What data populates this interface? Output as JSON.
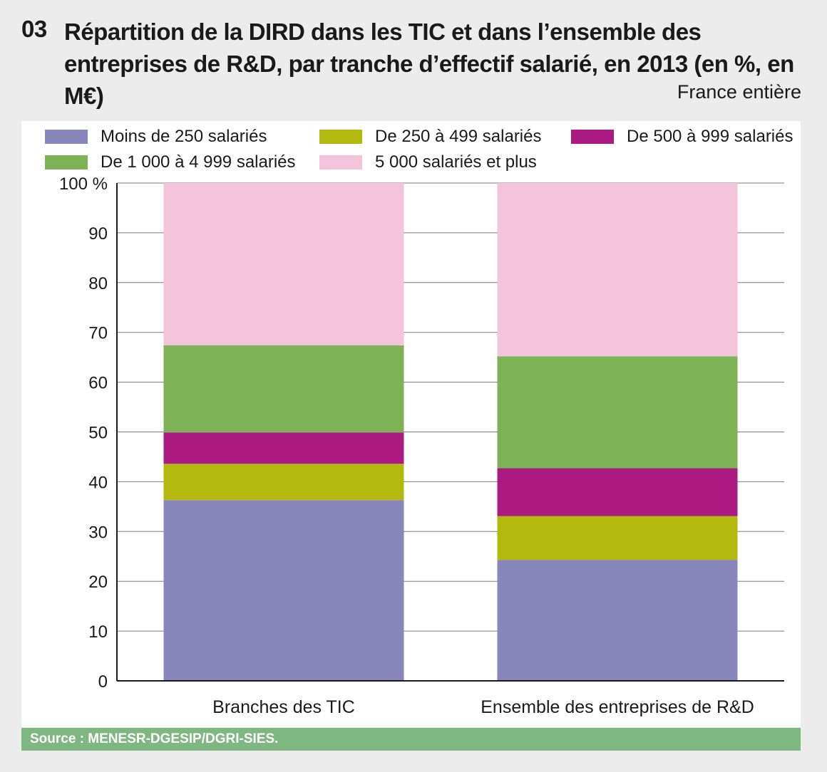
{
  "header": {
    "number": "03",
    "title": "Répartition de la DIRD dans les TIC et dans l’ensemble des entreprises de R&D, par tranche d’effectif salarié, en 2013 (en %, en M€)",
    "scope": "France entière"
  },
  "legend": [
    {
      "label": "Moins de 250 salariés",
      "color": "#8886ba"
    },
    {
      "label": "De 250 à 499 salariés",
      "color": "#b2b80e"
    },
    {
      "label": "De 500 à 999 salariés",
      "color": "#ab1a80"
    },
    {
      "label": "De 1 000 à 4 999 salariés",
      "color": "#7db257"
    },
    {
      "label": "5 000 salariés et plus",
      "color": "#f3c3da"
    }
  ],
  "chart_data": {
    "type": "bar",
    "stacked": true,
    "categories": [
      "Branches des TIC",
      "Ensemble des entreprises de R&D"
    ],
    "series": [
      {
        "name": "Moins de 250 salariés",
        "color": "#8886ba",
        "values": [
          36.3,
          24.3
        ]
      },
      {
        "name": "De 250 à 499 salariés",
        "color": "#b2b80e",
        "values": [
          7.3,
          8.8
        ]
      },
      {
        "name": "De 500 à 999 salariés",
        "color": "#ab1a80",
        "values": [
          6.3,
          9.6
        ]
      },
      {
        "name": "De 1 000 à 4 999 salariés",
        "color": "#7db257",
        "values": [
          17.5,
          22.5
        ]
      },
      {
        "name": "5 000 salariés et plus",
        "color": "#f3c3da",
        "values": [
          32.6,
          34.8
        ]
      }
    ],
    "yticks": [
      "0",
      "10",
      "20",
      "30",
      "40",
      "50",
      "60",
      "70",
      "80",
      "90",
      "100 %"
    ],
    "ylim": [
      0,
      100
    ],
    "grid": true,
    "xlabel": "",
    "ylabel": ""
  },
  "footer": {
    "source": "Source : MENESR-DGESIP/DGRI-SIES."
  }
}
